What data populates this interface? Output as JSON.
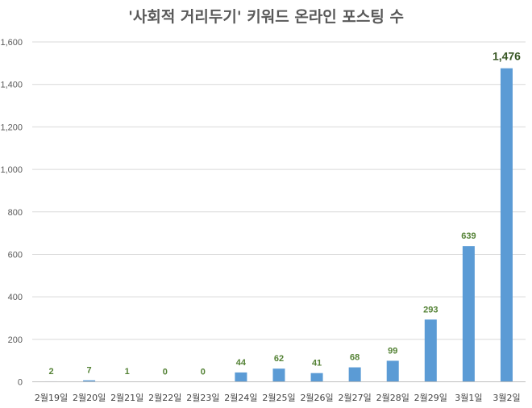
{
  "chart_data": {
    "type": "bar",
    "title": "'사회적 거리두기' 키워드 온라인 포스팅 수",
    "categories": [
      "2월19일",
      "2월20일",
      "2월21일",
      "2월22일",
      "2월23일",
      "2월24일",
      "2월25일",
      "2월26일",
      "2월27일",
      "2월28일",
      "2월29일",
      "3월1일",
      "3월2일"
    ],
    "values": [
      2,
      7,
      1,
      0,
      0,
      44,
      62,
      41,
      68,
      99,
      293,
      639,
      1476
    ],
    "data_labels": [
      "2",
      "7",
      "1",
      "0",
      "0",
      "44",
      "62",
      "41",
      "68",
      "99",
      "293",
      "639",
      "1,476"
    ],
    "ylim": [
      0,
      1600
    ],
    "yticks": [
      0,
      200,
      400,
      600,
      800,
      1000,
      1200,
      1400,
      1600
    ],
    "ytick_labels": [
      "0",
      "200",
      "400",
      "600",
      "800",
      "1,000",
      "1,200",
      "1,400",
      "1,600"
    ],
    "grid": true,
    "legend": "none",
    "colors": {
      "bar": "#5b9bd5",
      "label": "#548235",
      "label_emphasis": "#375623"
    }
  }
}
